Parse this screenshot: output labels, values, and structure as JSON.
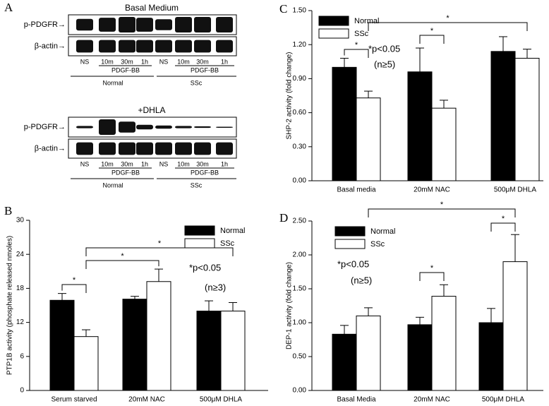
{
  "blot": {
    "panel": "A",
    "blocks": [
      {
        "title": "Basal Medium",
        "rows": [
          "p-PDGFR→",
          "β-actin→"
        ],
        "lanes": [
          "NS",
          "10m",
          "30m",
          "1h",
          "NS",
          "10m",
          "30m",
          "1h"
        ],
        "stimulus": [
          "PDGF-BB",
          "PDGF-BB"
        ],
        "groups": [
          "Normal",
          "SSc"
        ]
      },
      {
        "title": "+DHLA",
        "rows": [
          "p-PDGFR→",
          "β-actin→"
        ],
        "lanes": [
          "NS",
          "10m",
          "30m",
          "1h",
          "NS",
          "10m",
          "30m",
          "1h"
        ],
        "stimulus": [
          "PDGF-BB",
          "PDGF-BB"
        ],
        "groups": [
          "Normal",
          "SSc"
        ]
      }
    ]
  },
  "chart_data": [
    {
      "type": "bar",
      "panel": "B",
      "ylabel": "PTP1B activity (phosphate released nmoles)",
      "categories": [
        "Serum starved",
        "20mM NAC",
        "500μM DHLA"
      ],
      "series": [
        {
          "name": "Normal",
          "color": "#000000",
          "values": [
            15.9,
            16.1,
            14.0
          ],
          "errors": [
            1.2,
            0.5,
            1.8
          ]
        },
        {
          "name": "SSc",
          "color": "#ffffff",
          "values": [
            9.5,
            19.2,
            14.0
          ],
          "errors": [
            1.2,
            2.2,
            1.5
          ]
        }
      ],
      "ylim": [
        0,
        30
      ],
      "yticks": [
        0,
        6,
        12,
        18,
        24,
        30
      ],
      "legend": "upper right",
      "annotations": [
        "*p<0.05",
        "(n≥3)"
      ],
      "brackets": [
        {
          "text": "*",
          "from": [
            0,
            0
          ],
          "to": [
            1,
            0
          ]
        },
        {
          "text": "*",
          "from": [
            1,
            0
          ],
          "to": [
            1,
            1
          ]
        },
        {
          "text": "*",
          "from": [
            1,
            0
          ],
          "to": [
            1,
            2
          ]
        }
      ]
    },
    {
      "type": "bar",
      "panel": "C",
      "ylabel": "SHP-2 activity (fold change)",
      "categories": [
        "Basal media",
        "20mM NAC",
        "500μM DHLA"
      ],
      "series": [
        {
          "name": "Normal",
          "color": "#000000",
          "values": [
            1.0,
            0.96,
            1.14
          ],
          "errors": [
            0.08,
            0.21,
            0.13
          ]
        },
        {
          "name": "SSc",
          "color": "#ffffff",
          "values": [
            0.73,
            0.64,
            1.08
          ],
          "errors": [
            0.06,
            0.07,
            0.08
          ]
        }
      ],
      "ylim": [
        0,
        1.5
      ],
      "yticks": [
        {
          "value": 0,
          "label": "0.00"
        },
        {
          "value": 0.3,
          "label": "0.30"
        },
        {
          "value": 0.6,
          "label": "0.60"
        },
        {
          "value": 0.9,
          "label": "0.90"
        },
        {
          "value": 1.2,
          "label": "1.20"
        },
        {
          "value": 1.5,
          "label": "1.50"
        }
      ],
      "legend": "upper left",
      "annotations": [
        "*p<0.05",
        "(n≥5)"
      ],
      "brackets": [
        {
          "text": "*",
          "from": [
            0,
            0
          ],
          "to": [
            1,
            0
          ]
        },
        {
          "text": "*",
          "from": [
            0,
            1
          ],
          "to": [
            1,
            1
          ]
        },
        {
          "text": "*",
          "from": [
            1,
            0
          ],
          "to": [
            1,
            2
          ]
        }
      ]
    },
    {
      "type": "bar",
      "panel": "D",
      "ylabel": "DEP-1 activity (fold change)",
      "categories": [
        "Basal Media",
        "20mM NAC",
        "500μM DHLA"
      ],
      "series": [
        {
          "name": "Normal",
          "color": "#000000",
          "values": [
            0.83,
            0.97,
            1.0
          ],
          "errors": [
            0.13,
            0.11,
            0.21
          ]
        },
        {
          "name": "SSc",
          "color": "#ffffff",
          "values": [
            1.1,
            1.39,
            1.9
          ],
          "errors": [
            0.12,
            0.17,
            0.4
          ]
        }
      ],
      "ylim": [
        0,
        2.5
      ],
      "yticks": [
        {
          "value": 0,
          "label": "0.00"
        },
        {
          "value": 0.5,
          "label": "0.50"
        },
        {
          "value": 1,
          "label": "1.00"
        },
        {
          "value": 1.5,
          "label": "1.50"
        },
        {
          "value": 2,
          "label": "2.00"
        },
        {
          "value": 2.5,
          "label": "2.50"
        }
      ],
      "legend": "upper left",
      "annotations": [
        "*p<0.05",
        "(n≥5)"
      ],
      "brackets": [
        {
          "text": "*",
          "from": [
            0,
            1
          ],
          "to": [
            1,
            1
          ]
        },
        {
          "text": "*",
          "from": [
            0,
            2
          ],
          "to": [
            1,
            2
          ]
        },
        {
          "text": "*",
          "from": [
            1,
            0
          ],
          "to": [
            1,
            2
          ]
        }
      ]
    }
  ]
}
